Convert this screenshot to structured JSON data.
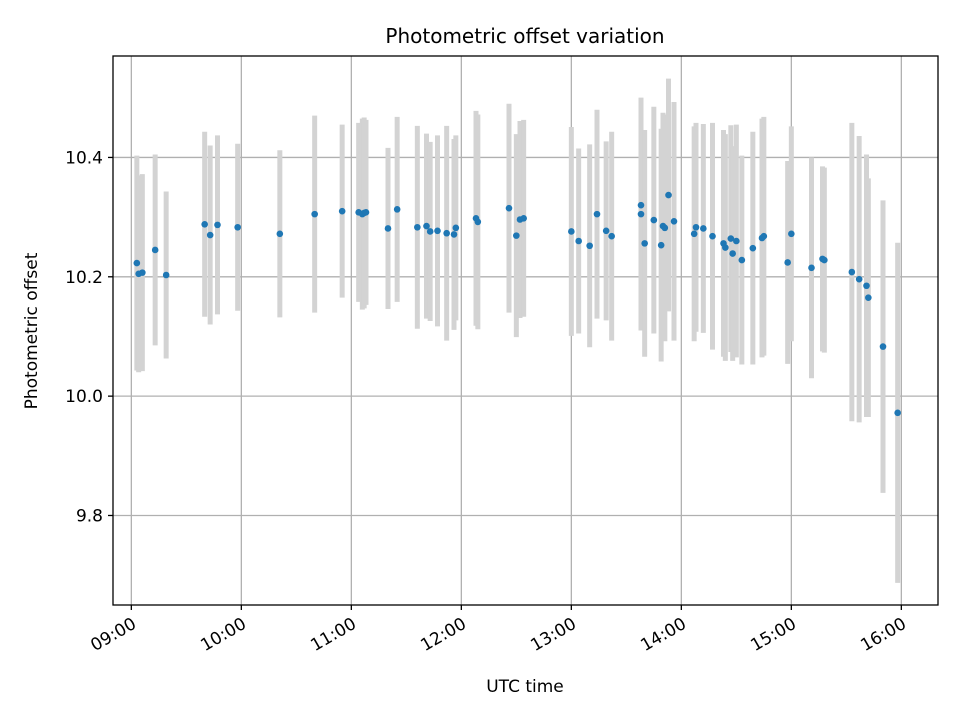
{
  "chart_data": {
    "type": "scatter",
    "title": "Photometric offset variation",
    "xlabel": "UTC time",
    "ylabel": "Photometric offset",
    "x_unit": "UTC time (HH:MM)",
    "xlim": [
      "08:50",
      "16:20"
    ],
    "ylim": [
      9.65,
      10.57
    ],
    "xticks": [
      "09:00",
      "10:00",
      "11:00",
      "12:00",
      "13:00",
      "14:00",
      "15:00",
      "16:00"
    ],
    "yticks": [
      9.8,
      10.0,
      10.2,
      10.4
    ],
    "ytick_labels": [
      "9.8",
      "10.0",
      "10.2",
      "10.4"
    ],
    "grid": true,
    "colors": {
      "point": "#1f77b4",
      "errorbar": "#d3d3d3",
      "grid": "#b0b0b0"
    },
    "series": [
      {
        "x": [
          "09:03",
          "09:04",
          "09:06",
          "09:13",
          "09:19",
          "09:40",
          "09:43",
          "09:47",
          "09:58",
          "10:21",
          "10:40",
          "10:55",
          "11:04",
          "11:06",
          "11:07",
          "11:08",
          "11:20",
          "11:25",
          "11:36",
          "11:41",
          "11:43",
          "11:47",
          "11:52",
          "11:56",
          "11:57",
          "12:08",
          "12:09",
          "12:26",
          "12:30",
          "12:32",
          "12:34",
          "13:00",
          "13:04",
          "13:10",
          "13:14",
          "13:19",
          "13:22",
          "13:38",
          "13:38",
          "13:40",
          "13:45",
          "13:49",
          "13:50",
          "13:51",
          "13:53",
          "13:56",
          "14:07",
          "14:08",
          "14:12",
          "14:17",
          "14:23",
          "14:24",
          "14:27",
          "14:28",
          "14:30",
          "14:33",
          "14:39",
          "14:44",
          "14:45",
          "14:58",
          "15:00",
          "15:11",
          "15:17",
          "15:18",
          "15:33",
          "15:37",
          "15:41",
          "15:42",
          "15:50",
          "15:58"
        ],
        "y": [
          10.223,
          10.205,
          10.207,
          10.245,
          10.203,
          10.288,
          10.27,
          10.287,
          10.283,
          10.272,
          10.305,
          10.31,
          10.308,
          10.305,
          10.307,
          10.308,
          10.281,
          10.313,
          10.283,
          10.285,
          10.276,
          10.277,
          10.273,
          10.271,
          10.282,
          10.298,
          10.292,
          10.315,
          10.269,
          10.296,
          10.298,
          10.276,
          10.26,
          10.252,
          10.305,
          10.277,
          10.268,
          10.32,
          10.305,
          10.256,
          10.295,
          10.253,
          10.285,
          10.282,
          10.337,
          10.293,
          10.272,
          10.283,
          10.281,
          10.268,
          10.256,
          10.249,
          10.264,
          10.239,
          10.26,
          10.228,
          10.248,
          10.265,
          10.268,
          10.224,
          10.272,
          10.215,
          10.23,
          10.228,
          10.208,
          10.196,
          10.185,
          10.165,
          10.083,
          9.972
        ],
        "yerr": [
          0.18,
          0.165,
          0.165,
          0.16,
          0.14,
          0.155,
          0.15,
          0.15,
          0.14,
          0.14,
          0.165,
          0.145,
          0.15,
          0.16,
          0.16,
          0.155,
          0.135,
          0.155,
          0.17,
          0.155,
          0.15,
          0.16,
          0.18,
          0.16,
          0.155,
          0.18,
          0.18,
          0.175,
          0.17,
          0.165,
          0.165,
          0.175,
          0.155,
          0.17,
          0.175,
          0.15,
          0.175,
          0.18,
          0.195,
          0.19,
          0.19,
          0.195,
          0.19,
          0.19,
          0.195,
          0.2,
          0.18,
          0.175,
          0.175,
          0.19,
          0.19,
          0.19,
          0.19,
          0.18,
          0.195,
          0.175,
          0.195,
          0.2,
          0.2,
          0.17,
          0.18,
          0.185,
          0.155,
          0.155,
          0.25,
          0.24,
          0.22,
          0.2,
          0.245,
          0.285
        ]
      }
    ]
  }
}
